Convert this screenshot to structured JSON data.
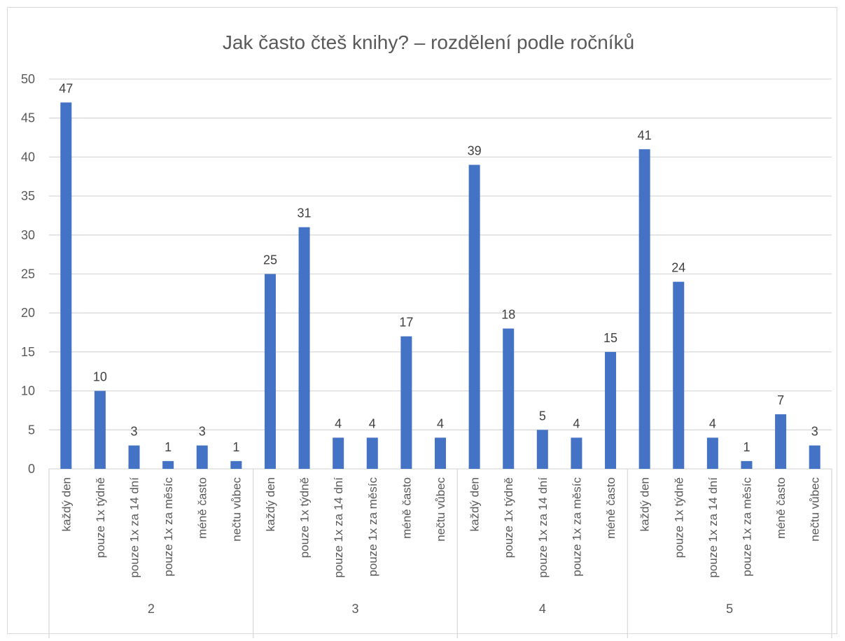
{
  "chart_data": {
    "type": "bar",
    "title": "Jak často čteš knihy? – rozdělení podle ročníků",
    "xlabel": "",
    "ylabel": "",
    "ylim": [
      0,
      50
    ],
    "yticks": [
      0,
      5,
      10,
      15,
      20,
      25,
      30,
      35,
      40,
      45,
      50
    ],
    "grid": true,
    "legend": "none",
    "bar_color": "#4472c4",
    "groups": [
      {
        "label": "2",
        "categories": [
          "každý den",
          "pouze 1x týdně",
          "pouze 1x za 14 dní",
          "pouze 1x za měsíc",
          "méně často",
          "nečtu vůbec"
        ],
        "values": [
          47,
          10,
          3,
          1,
          3,
          1
        ]
      },
      {
        "label": "3",
        "categories": [
          "každý den",
          "pouze 1x týdně",
          "pouze 1x za 14 dní",
          "pouze 1x za měsíc",
          "méně často",
          "nečtu vůbec"
        ],
        "values": [
          25,
          31,
          4,
          4,
          17,
          4
        ]
      },
      {
        "label": "4",
        "categories": [
          "každý den",
          "pouze 1x týdně",
          "pouze 1x za 14 dní",
          "pouze 1x za měsíc",
          "méně často"
        ],
        "values": [
          39,
          18,
          5,
          4,
          15
        ]
      },
      {
        "label": "5",
        "categories": [
          "každý den",
          "pouze 1x týdně",
          "pouze 1x za 14 dní",
          "pouze 1x za měsíc",
          "méně často",
          "nečtu vůbec"
        ],
        "values": [
          41,
          24,
          4,
          1,
          7,
          3
        ]
      }
    ]
  }
}
